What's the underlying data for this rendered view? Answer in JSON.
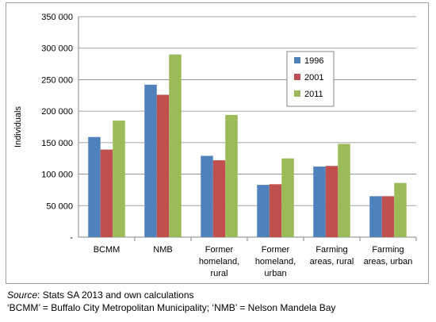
{
  "chart_data": {
    "type": "bar",
    "title": "",
    "xlabel": "",
    "ylabel": "Individuals",
    "ylim": [
      0,
      350000
    ],
    "yticks": [
      0,
      50000,
      100000,
      150000,
      200000,
      250000,
      300000,
      350000
    ],
    "ytick_labels": [
      "-",
      "50 000",
      "100 000",
      "150 000",
      "200 000",
      "250 000",
      "300 000",
      "350 000"
    ],
    "grid": "horizontal",
    "legend_position": "top-right",
    "categories": [
      [
        "BCMM"
      ],
      [
        "NMB"
      ],
      [
        "Former",
        "homeland,",
        "rural"
      ],
      [
        "Former",
        "homeland,",
        "urban"
      ],
      [
        "Farming",
        "areas, rural"
      ],
      [
        "Farming",
        "areas, urban"
      ]
    ],
    "series": [
      {
        "name": "1996",
        "color": "#4f81bd",
        "values": [
          159000,
          242000,
          129000,
          83000,
          112000,
          65000
        ]
      },
      {
        "name": "2001",
        "color": "#c0504d",
        "values": [
          139000,
          226000,
          122000,
          84000,
          113000,
          65000
        ]
      },
      {
        "name": "2011",
        "color": "#9bbb59",
        "values": [
          185000,
          290000,
          194000,
          125000,
          148000,
          86000
        ]
      }
    ]
  },
  "notes": {
    "source_label": "Source",
    "source_text": ": Stats SA 2013 and own calculations",
    "abbreviations": "‘BCMM’ = Buffalo City Metropolitan Municipality; ‘NMB’ = Nelson Mandela Bay"
  }
}
